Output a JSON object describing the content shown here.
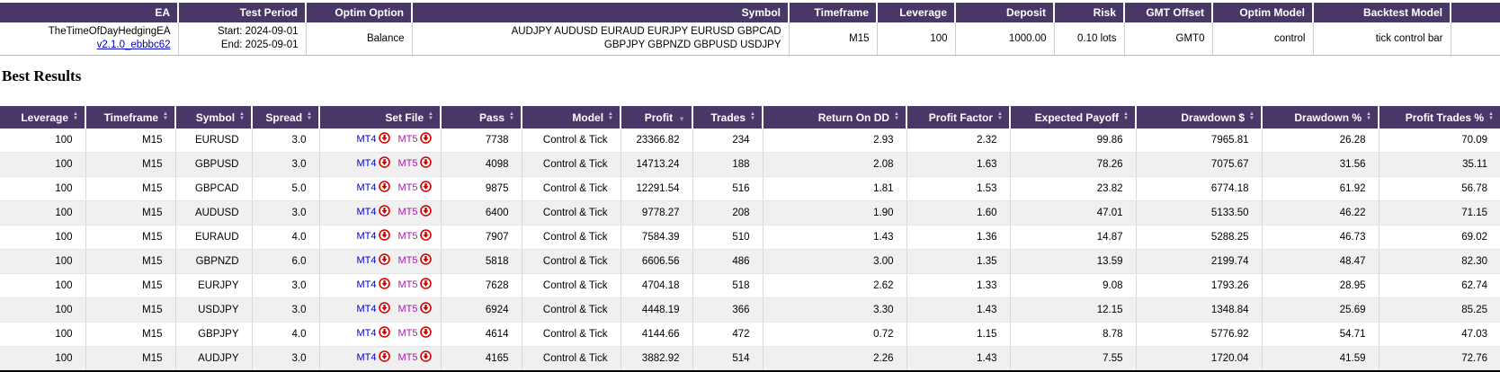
{
  "info_table": {
    "headers": [
      "EA",
      "Test Period",
      "Optim Option",
      "Symbol",
      "Timeframe",
      "Leverage",
      "Deposit",
      "Risk",
      "GMT Offset",
      "Optim Model",
      "Backtest Model"
    ],
    "ea_name": "TheTimeOfDayHedgingEA",
    "ea_version_link": "v2.1.0_ebbbc62",
    "test_period_start": "Start: 2024-09-01",
    "test_period_end": "End: 2025-09-01",
    "optim_option": "Balance",
    "symbol_line1": "AUDJPY AUDUSD EURAUD EURJPY EURUSD GBPCAD",
    "symbol_line2": "GBPJPY GBPNZD GBPUSD USDJPY",
    "timeframe": "M15",
    "leverage": "100",
    "deposit": "1000.00",
    "risk": "0.10 lots",
    "gmt_offset": "GMT0",
    "optim_model": "control",
    "backtest_model": "tick control bar"
  },
  "section_title": "Best Results",
  "results_table": {
    "columns": [
      {
        "label": "Leverage",
        "sort": "both"
      },
      {
        "label": "Timeframe",
        "sort": "both"
      },
      {
        "label": "Symbol",
        "sort": "both"
      },
      {
        "label": "Spread",
        "sort": "both"
      },
      {
        "label": "Set File",
        "sort": "both"
      },
      {
        "label": "Pass",
        "sort": "both"
      },
      {
        "label": "Model",
        "sort": "both"
      },
      {
        "label": "Profit",
        "sort": "desc"
      },
      {
        "label": "Trades",
        "sort": "both"
      },
      {
        "label": "Return On DD",
        "sort": "both"
      },
      {
        "label": "Profit Factor",
        "sort": "both"
      },
      {
        "label": "Expected Payoff",
        "sort": "both"
      },
      {
        "label": "Drawdown $",
        "sort": "both"
      },
      {
        "label": "Drawdown %",
        "sort": "both"
      },
      {
        "label": "Profit Trades %",
        "sort": "both"
      }
    ],
    "mt4_label": "MT4",
    "mt5_label": "MT5",
    "rows": [
      {
        "leverage": "100",
        "timeframe": "M15",
        "symbol": "EURUSD",
        "spread": "3.0",
        "pass": "7738",
        "model": "Control & Tick",
        "profit": "23366.82",
        "trades": "234",
        "return_on_dd": "2.93",
        "profit_factor": "2.32",
        "expected_payoff": "99.86",
        "drawdown_usd": "7965.81",
        "drawdown_pct": "26.28",
        "profit_trades_pct": "70.09"
      },
      {
        "leverage": "100",
        "timeframe": "M15",
        "symbol": "GBPUSD",
        "spread": "3.0",
        "pass": "4098",
        "model": "Control & Tick",
        "profit": "14713.24",
        "trades": "188",
        "return_on_dd": "2.08",
        "profit_factor": "1.63",
        "expected_payoff": "78.26",
        "drawdown_usd": "7075.67",
        "drawdown_pct": "31.56",
        "profit_trades_pct": "35.11"
      },
      {
        "leverage": "100",
        "timeframe": "M15",
        "symbol": "GBPCAD",
        "spread": "5.0",
        "pass": "9875",
        "model": "Control & Tick",
        "profit": "12291.54",
        "trades": "516",
        "return_on_dd": "1.81",
        "profit_factor": "1.53",
        "expected_payoff": "23.82",
        "drawdown_usd": "6774.18",
        "drawdown_pct": "61.92",
        "profit_trades_pct": "56.78"
      },
      {
        "leverage": "100",
        "timeframe": "M15",
        "symbol": "AUDUSD",
        "spread": "3.0",
        "pass": "6400",
        "model": "Control & Tick",
        "profit": "9778.27",
        "trades": "208",
        "return_on_dd": "1.90",
        "profit_factor": "1.60",
        "expected_payoff": "47.01",
        "drawdown_usd": "5133.50",
        "drawdown_pct": "46.22",
        "profit_trades_pct": "71.15"
      },
      {
        "leverage": "100",
        "timeframe": "M15",
        "symbol": "EURAUD",
        "spread": "4.0",
        "pass": "7907",
        "model": "Control & Tick",
        "profit": "7584.39",
        "trades": "510",
        "return_on_dd": "1.43",
        "profit_factor": "1.36",
        "expected_payoff": "14.87",
        "drawdown_usd": "5288.25",
        "drawdown_pct": "46.73",
        "profit_trades_pct": "69.02"
      },
      {
        "leverage": "100",
        "timeframe": "M15",
        "symbol": "GBPNZD",
        "spread": "6.0",
        "pass": "5818",
        "model": "Control & Tick",
        "profit": "6606.56",
        "trades": "486",
        "return_on_dd": "3.00",
        "profit_factor": "1.35",
        "expected_payoff": "13.59",
        "drawdown_usd": "2199.74",
        "drawdown_pct": "48.47",
        "profit_trades_pct": "82.30"
      },
      {
        "leverage": "100",
        "timeframe": "M15",
        "symbol": "EURJPY",
        "spread": "3.0",
        "pass": "7628",
        "model": "Control & Tick",
        "profit": "4704.18",
        "trades": "518",
        "return_on_dd": "2.62",
        "profit_factor": "1.33",
        "expected_payoff": "9.08",
        "drawdown_usd": "1793.26",
        "drawdown_pct": "28.95",
        "profit_trades_pct": "62.74"
      },
      {
        "leverage": "100",
        "timeframe": "M15",
        "symbol": "USDJPY",
        "spread": "3.0",
        "pass": "6924",
        "model": "Control & Tick",
        "profit": "4448.19",
        "trades": "366",
        "return_on_dd": "3.30",
        "profit_factor": "1.43",
        "expected_payoff": "12.15",
        "drawdown_usd": "1348.84",
        "drawdown_pct": "25.69",
        "profit_trades_pct": "85.25"
      },
      {
        "leverage": "100",
        "timeframe": "M15",
        "symbol": "GBPJPY",
        "spread": "4.0",
        "pass": "4614",
        "model": "Control & Tick",
        "profit": "4144.66",
        "trades": "472",
        "return_on_dd": "0.72",
        "profit_factor": "1.15",
        "expected_payoff": "8.78",
        "drawdown_usd": "5776.92",
        "drawdown_pct": "54.71",
        "profit_trades_pct": "47.03"
      },
      {
        "leverage": "100",
        "timeframe": "M15",
        "symbol": "AUDJPY",
        "spread": "3.0",
        "pass": "4165",
        "model": "Control & Tick",
        "profit": "3882.92",
        "trades": "514",
        "return_on_dd": "2.26",
        "profit_factor": "1.43",
        "expected_payoff": "7.55",
        "drawdown_usd": "1720.04",
        "drawdown_pct": "41.59",
        "profit_trades_pct": "72.76"
      }
    ]
  },
  "colors": {
    "header_bg": "#493768",
    "row_alt_bg": "#f0f0f0",
    "mt4_link": "#0000cc",
    "mt5_link": "#a817b4",
    "download_icon": "#cc0000",
    "version_link": "#0000cc"
  }
}
